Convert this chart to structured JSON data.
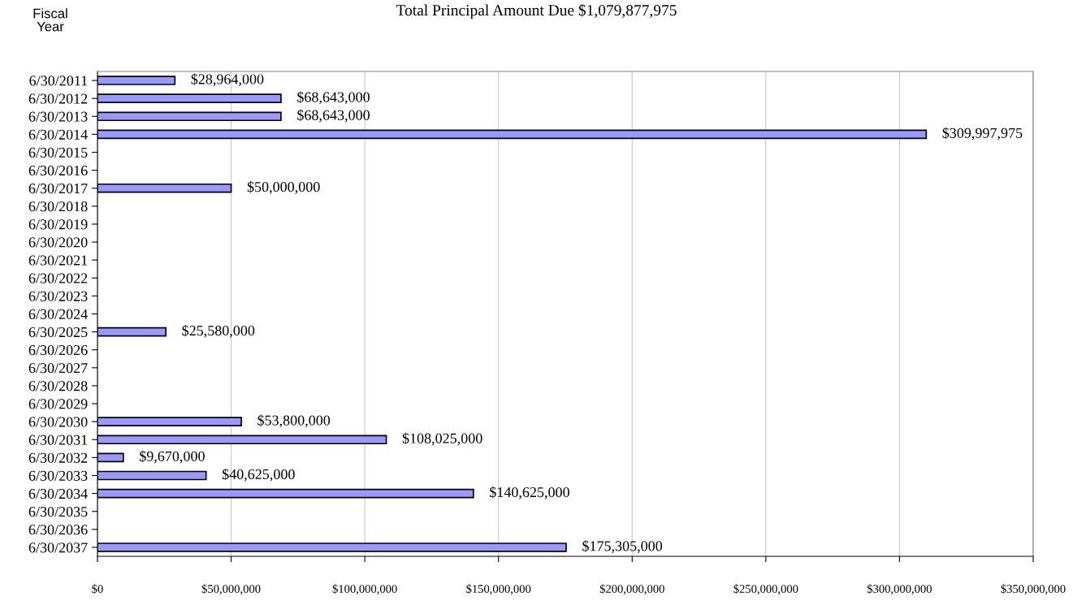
{
  "chart_data": {
    "type": "bar",
    "orientation": "horizontal",
    "title": "Total Principal Amount Due $1,079,877,975",
    "ylabel": "Fiscal\nYear",
    "categories": [
      "6/30/2011",
      "6/30/2012",
      "6/30/2013",
      "6/30/2014",
      "6/30/2015",
      "6/30/2016",
      "6/30/2017",
      "6/30/2018",
      "6/30/2019",
      "6/30/2020",
      "6/30/2021",
      "6/30/2022",
      "6/30/2023",
      "6/30/2024",
      "6/30/2025",
      "6/30/2026",
      "6/30/2027",
      "6/30/2028",
      "6/30/2029",
      "6/30/2030",
      "6/30/2031",
      "6/30/2032",
      "6/30/2033",
      "6/30/2034",
      "6/30/2035",
      "6/30/2036",
      "6/30/2037"
    ],
    "values": [
      28964000,
      68643000,
      68643000,
      309997975,
      null,
      null,
      50000000,
      null,
      null,
      null,
      null,
      null,
      null,
      null,
      25580000,
      null,
      null,
      null,
      null,
      53800000,
      108025000,
      9670000,
      40625000,
      140625000,
      null,
      null,
      175305000
    ],
    "value_labels": [
      "$28,964,000",
      "$68,643,000",
      "$68,643,000",
      "$309,997,975",
      null,
      null,
      "$50,000,000",
      null,
      null,
      null,
      null,
      null,
      null,
      null,
      "$25,580,000",
      null,
      null,
      null,
      null,
      "$53,800,000",
      "$108,025,000",
      "$9,670,000",
      "$40,625,000",
      "$140,625,000",
      null,
      null,
      "$175,305,000"
    ],
    "color": "#9999ff",
    "xlim": [
      0,
      350000000
    ],
    "xticks": [
      {
        "value": 0,
        "label": "$0"
      },
      {
        "value": 50000000,
        "label": "$50,000,000"
      },
      {
        "value": 100000000,
        "label": "$100,000,000"
      },
      {
        "value": 150000000,
        "label": "$150,000,000"
      },
      {
        "value": 200000000,
        "label": "$200,000,000"
      },
      {
        "value": 250000000,
        "label": "$250,000,000"
      },
      {
        "value": 300000000,
        "label": "$300,000,000"
      },
      {
        "value": 350000000,
        "label": "$350,000,000"
      }
    ],
    "grid": "x"
  }
}
